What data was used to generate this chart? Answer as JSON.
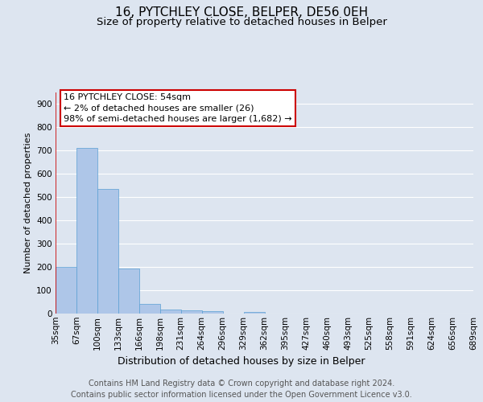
{
  "title1": "16, PYTCHLEY CLOSE, BELPER, DE56 0EH",
  "title2": "Size of property relative to detached houses in Belper",
  "xlabel": "Distribution of detached houses by size in Belper",
  "ylabel": "Number of detached properties",
  "bar_values": [
    200,
    710,
    535,
    192,
    43,
    18,
    14,
    9,
    0,
    8,
    0,
    0,
    0,
    0,
    0,
    0,
    0,
    0,
    0,
    0
  ],
  "bin_labels": [
    "35sqm",
    "67sqm",
    "100sqm",
    "133sqm",
    "166sqm",
    "198sqm",
    "231sqm",
    "264sqm",
    "296sqm",
    "329sqm",
    "362sqm",
    "395sqm",
    "427sqm",
    "460sqm",
    "493sqm",
    "525sqm",
    "558sqm",
    "591sqm",
    "624sqm",
    "656sqm",
    "689sqm"
  ],
  "bar_color": "#aec6e8",
  "bar_edge_color": "#5a9fd4",
  "annotation_box_text": "16 PYTCHLEY CLOSE: 54sqm\n← 2% of detached houses are smaller (26)\n98% of semi-detached houses are larger (1,682) →",
  "annotation_box_color": "#ffffff",
  "annotation_box_edge_color": "#cc0000",
  "vline_color": "#cc0000",
  "ylim": [
    0,
    950
  ],
  "yticks": [
    0,
    100,
    200,
    300,
    400,
    500,
    600,
    700,
    800,
    900
  ],
  "footer_text": "Contains HM Land Registry data © Crown copyright and database right 2024.\nContains public sector information licensed under the Open Government Licence v3.0.",
  "background_color": "#dde5f0",
  "plot_background_color": "#dde5f0",
  "grid_color": "#ffffff",
  "title1_fontsize": 11,
  "title2_fontsize": 9.5,
  "xlabel_fontsize": 9,
  "ylabel_fontsize": 8,
  "tick_fontsize": 7.5,
  "annotation_fontsize": 8,
  "footer_fontsize": 7
}
